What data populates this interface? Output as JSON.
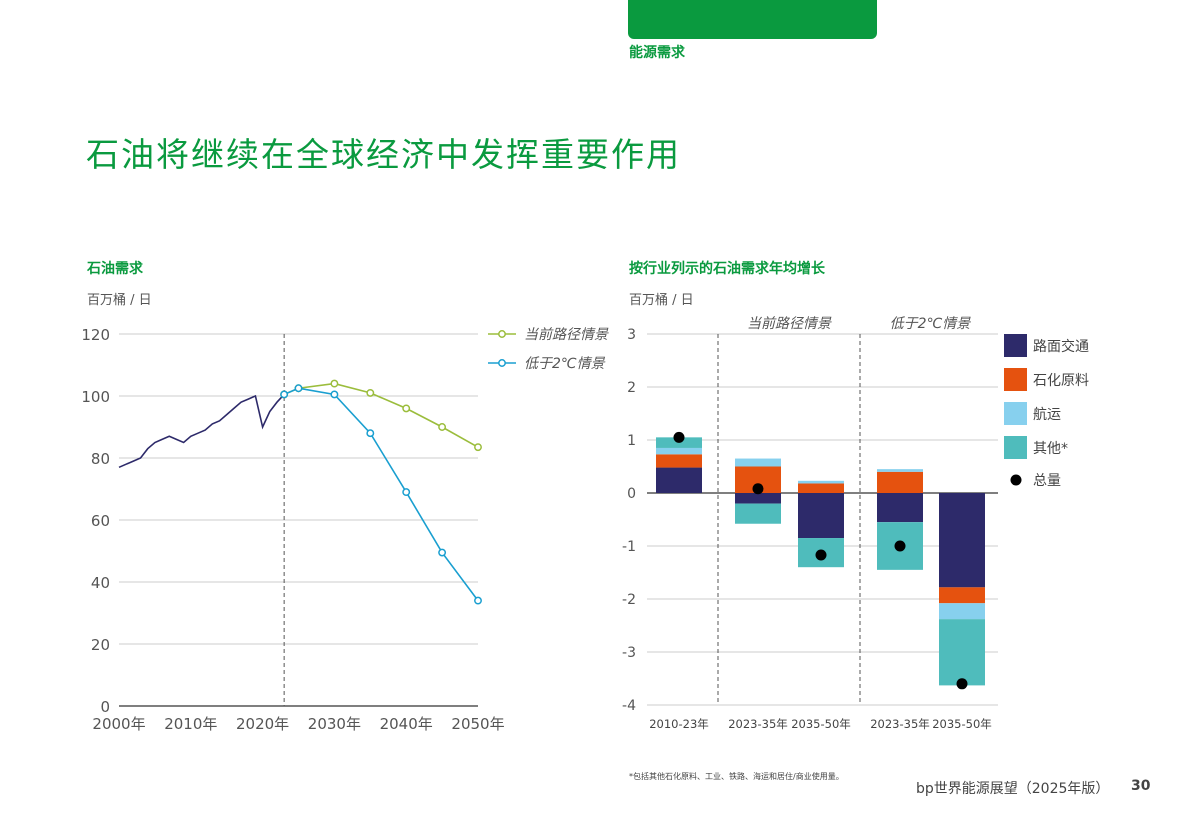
{
  "header": {
    "section": "能源需求",
    "title": "石油将继续在全球经济中发挥重要作用"
  },
  "colors": {
    "brand_green": "#0a9a3f",
    "current_path": "#9bbd3c",
    "below2": "#1a9fd0",
    "history": "#2d2a6a",
    "road": "#2d2a6a",
    "petchem": "#e5520f",
    "aviation": "#87d0ee",
    "other": "#4fbcbc",
    "total": "#000000"
  },
  "footer": {
    "footnote": "*包括其他石化原料、工业、铁路、海运和居住/商业使用量。",
    "publication": "bp世界能源展望（2025年版）",
    "page_number": "30"
  },
  "chart_data": [
    {
      "type": "line",
      "title": "石油需求",
      "ylabel": "百万桶 / 日",
      "ylim": [
        0,
        120
      ],
      "yticks": [
        0,
        20,
        40,
        60,
        80,
        100,
        120
      ],
      "xlim": [
        2000,
        2050
      ],
      "xtick_labels": [
        "2000年",
        "2010年",
        "2020年",
        "2030年",
        "2040年",
        "2050年"
      ],
      "xtick_values": [
        2000,
        2010,
        2020,
        2030,
        2040,
        2050
      ],
      "divider_x": 2023,
      "grid": true,
      "legend_position": "top-right",
      "series": [
        {
          "key": "history",
          "x": [
            2000,
            2001,
            2002,
            2003,
            2004,
            2005,
            2006,
            2007,
            2008,
            2009,
            2010,
            2011,
            2012,
            2013,
            2014,
            2015,
            2016,
            2017,
            2018,
            2019,
            2020,
            2021,
            2022,
            2023
          ],
          "y": [
            77,
            78,
            79,
            80,
            83,
            85,
            86,
            87,
            86,
            85,
            87,
            88,
            89,
            91,
            92,
            94,
            96,
            98,
            99,
            100,
            90,
            95,
            98,
            100.5
          ]
        },
        {
          "key": "current_path",
          "name": "当前路径情景",
          "x": [
            2023,
            2025,
            2030,
            2035,
            2040,
            2045,
            2050
          ],
          "y": [
            100.5,
            102.5,
            104,
            101,
            96,
            90,
            83.5
          ]
        },
        {
          "key": "below2",
          "name": "低于2℃情景",
          "x": [
            2023,
            2025,
            2030,
            2035,
            2040,
            2045,
            2050
          ],
          "y": [
            100.5,
            102.5,
            100.5,
            88,
            69,
            49.5,
            34
          ]
        }
      ]
    },
    {
      "type": "bar",
      "stacked": true,
      "title": "按行业列示的石油需求年均增长",
      "ylabel": "百万桶 / 日",
      "ylim": [
        -4,
        3
      ],
      "yticks": [
        3,
        2,
        1,
        0,
        -1,
        -2,
        -3,
        -4
      ],
      "grid": true,
      "group_labels": [
        "当前路径情景",
        "低于2℃情景"
      ],
      "categories": [
        "2010-23年",
        "2023-35年",
        "2035-50年",
        "2023-35年",
        "2035-50年"
      ],
      "legend": [
        "路面交通",
        "石化原料",
        "航运",
        "其他*",
        "总量"
      ],
      "series": [
        {
          "key": "road",
          "name": "路面交通",
          "values": [
            0.48,
            -0.2,
            -0.85,
            -0.55,
            -1.78
          ]
        },
        {
          "key": "petchem",
          "name": "石化原料",
          "values": [
            0.25,
            0.5,
            0.18,
            0.4,
            -0.3
          ]
        },
        {
          "key": "aviation",
          "name": "航运",
          "values": [
            0.12,
            0.15,
            0.05,
            0.05,
            -0.3
          ]
        },
        {
          "key": "other",
          "name": "其他*",
          "values": [
            0.2,
            -0.38,
            -0.55,
            -0.9,
            -1.25
          ]
        }
      ],
      "totals": [
        1.05,
        0.08,
        -1.17,
        -1.0,
        -3.6
      ]
    }
  ]
}
